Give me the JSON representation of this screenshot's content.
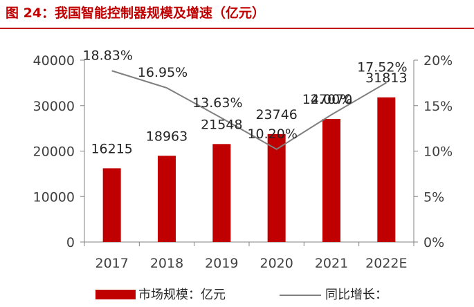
{
  "header": {
    "title": "图 24：我国智能控制器规模及增速（亿元）"
  },
  "chart_data": {
    "type": "bar",
    "categories": [
      "2017",
      "2018",
      "2019",
      "2020",
      "2021",
      "2022E"
    ],
    "series": [
      {
        "name": "市场规模：亿元",
        "kind": "bar",
        "axis": "left",
        "values": [
          16215,
          18963,
          21548,
          23746,
          27070,
          31813
        ],
        "labels": [
          "16215",
          "18963",
          "21548",
          "23746",
          "27070",
          "31813"
        ],
        "color": "#c00000"
      },
      {
        "name": "同比增长：",
        "kind": "line",
        "axis": "right",
        "values": [
          18.83,
          16.95,
          13.63,
          10.2,
          14.0,
          17.52
        ],
        "labels": [
          "18.83%",
          "16.95%",
          "13.63%",
          "10.20%",
          "14.00%",
          "17.52%"
        ],
        "color": "#7f7f7f"
      }
    ],
    "ylim": [
      0,
      40000
    ],
    "y_ticks": [
      "0",
      "10000",
      "20000",
      "30000",
      "40000"
    ],
    "y2lim": [
      0,
      20
    ],
    "y2_ticks": [
      "0%",
      "5%",
      "10%",
      "15%",
      "20%"
    ],
    "grid": false,
    "legend": "bottom"
  }
}
